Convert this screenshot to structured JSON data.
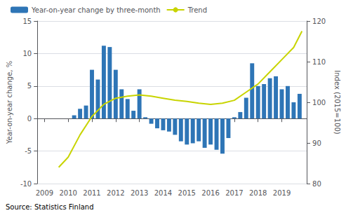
{
  "chart_data": {
    "type": "bar",
    "ylabel": "Year-on-year change, %",
    "y2label": "Index (2015=100)",
    "annotations": [
      "Source: Statistics Finland"
    ],
    "xlim": [
      2008.7,
      2020.05
    ],
    "xticks": [
      2009,
      2010,
      2011,
      2012,
      2013,
      2014,
      2015,
      2016,
      2017,
      2018,
      2019
    ],
    "ylim": [
      -10,
      15
    ],
    "yticks": [
      -10,
      -5,
      0,
      5,
      10,
      15
    ],
    "y2lim": [
      80,
      120
    ],
    "y2ticks": [
      80,
      90,
      100,
      110,
      120
    ],
    "grid": true,
    "legend": "upper left",
    "series": [
      {
        "name": "Year-on-year change by three-month",
        "type": "bar",
        "color": "#2e75b6",
        "x": [
          2010.25,
          2010.5,
          2010.75,
          2011.0,
          2011.25,
          2011.5,
          2011.75,
          2012.0,
          2012.25,
          2012.5,
          2012.75,
          2013.0,
          2013.25,
          2013.5,
          2013.75,
          2014.0,
          2014.25,
          2014.5,
          2014.75,
          2015.0,
          2015.25,
          2015.5,
          2015.75,
          2016.0,
          2016.25,
          2016.5,
          2016.75,
          2017.0,
          2017.25,
          2017.5,
          2017.75,
          2018.0,
          2018.25,
          2018.5,
          2018.75,
          2019.0,
          2019.25,
          2019.5,
          2019.75
        ],
        "values": [
          0.5,
          1.5,
          2.0,
          7.5,
          6.0,
          11.2,
          11.0,
          7.5,
          4.5,
          3.0,
          1.2,
          4.5,
          0.2,
          -0.8,
          -1.5,
          -1.8,
          -2.0,
          -2.5,
          -3.5,
          -4.0,
          -3.8,
          -3.5,
          -4.5,
          -4.0,
          -4.8,
          -5.4,
          -3.0,
          0.2,
          1.0,
          3.2,
          8.5,
          5.0,
          5.3,
          6.2,
          6.5,
          4.5,
          5.0,
          2.5,
          3.8
        ]
      },
      {
        "name": "Trend",
        "type": "line",
        "color": "#c8d400",
        "axis": "y2",
        "x": [
          2009.6,
          2010.0,
          2010.5,
          2011.0,
          2011.5,
          2012.0,
          2012.5,
          2013.0,
          2013.5,
          2014.0,
          2014.5,
          2015.0,
          2015.5,
          2016.0,
          2016.5,
          2017.0,
          2017.5,
          2018.0,
          2018.5,
          2019.0,
          2019.5,
          2019.85
        ],
        "values": [
          84.0,
          86.5,
          92.0,
          96.5,
          99.5,
          101.0,
          101.5,
          101.8,
          101.5,
          101.0,
          100.5,
          100.2,
          99.8,
          99.5,
          99.8,
          100.5,
          102.5,
          104.5,
          107.5,
          110.5,
          113.5,
          117.5
        ]
      }
    ]
  }
}
